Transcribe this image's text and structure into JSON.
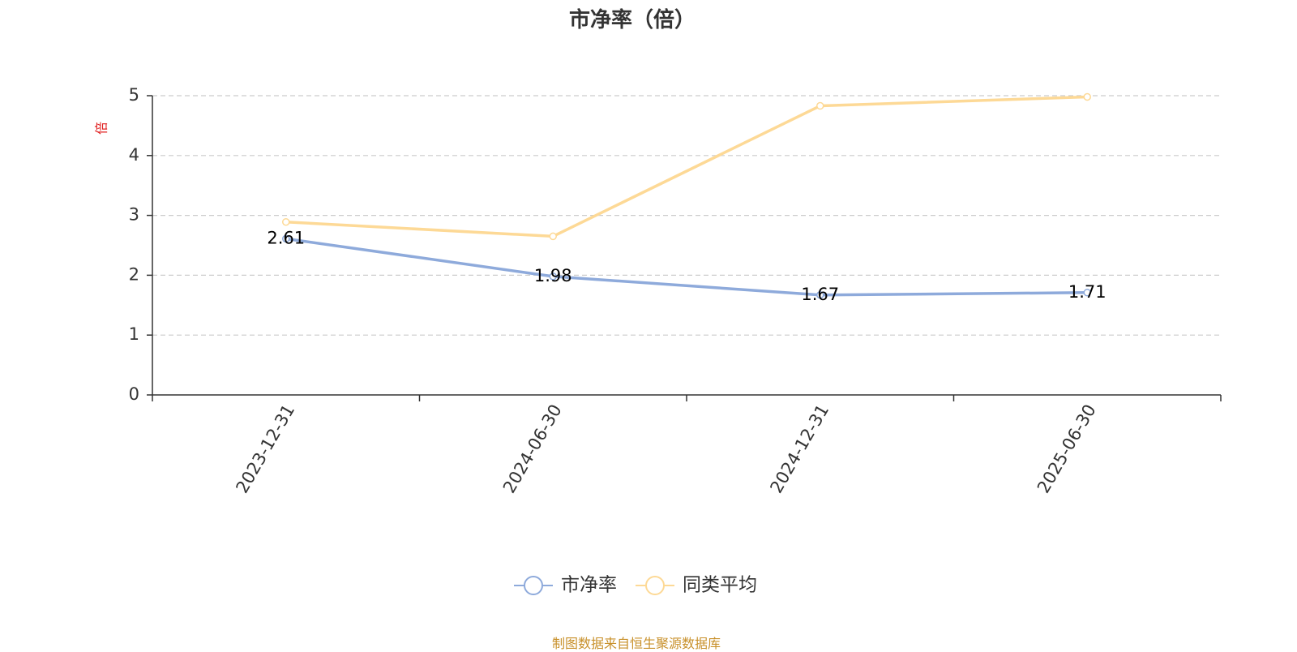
{
  "chart_data": {
    "type": "line",
    "title": "市净率（倍）",
    "ylabel": "倍",
    "xlabel": "",
    "categories": [
      "2023-12-31",
      "2024-06-30",
      "2024-12-31",
      "2025-06-30"
    ],
    "ylim": [
      0,
      5
    ],
    "yticks": [
      0,
      1,
      2,
      3,
      4,
      5
    ],
    "grid": true,
    "legend_position": "bottom-center",
    "series": [
      {
        "name": "市净率",
        "values": [
          2.61,
          1.98,
          1.67,
          1.71
        ],
        "color": "#8eaadb",
        "show_labels": true
      },
      {
        "name": "同类平均",
        "values": [
          2.89,
          2.65,
          4.83,
          4.98
        ],
        "color": "#fdd996",
        "show_labels": false
      }
    ]
  },
  "footer": {
    "source": "制图数据来自恒生聚源数据库"
  }
}
